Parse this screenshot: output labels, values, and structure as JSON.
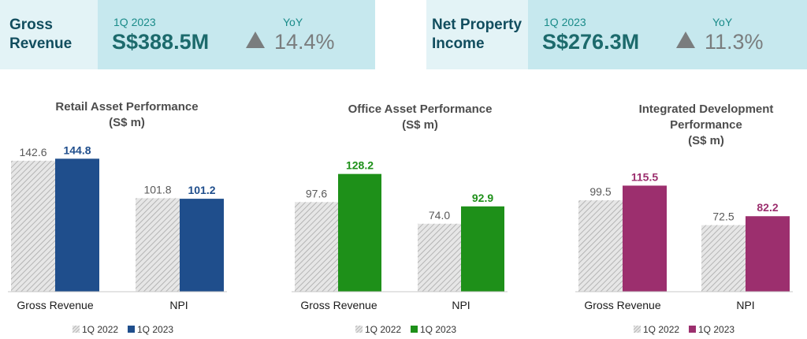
{
  "kpis": [
    {
      "name_line1": "Gross",
      "name_line2": "Revenue",
      "period": "1Q 2023",
      "amount": "S$388.5M",
      "yoy_label": "YoY",
      "yoy_value": "14.4%"
    },
    {
      "name_line1": "Net Property",
      "name_line2": "Income",
      "period": "1Q 2023",
      "amount": "S$276.3M",
      "yoy_label": "YoY",
      "yoy_value": "11.3%"
    }
  ],
  "colors": {
    "hatch": "#b3b3b3",
    "retail": "#1f4e8c",
    "office": "#1e9019",
    "integrated": "#9c2f6e",
    "kpi_bg": "#e3f3f6",
    "kpi_inner": "#c6e8ee",
    "triangle": "#7a7d7e"
  },
  "chart_data": [
    {
      "type": "bar",
      "title": [
        "Retail Asset Performance",
        "(S$ m)"
      ],
      "categories": [
        "Gross Revenue",
        "NPI"
      ],
      "series": [
        {
          "name": "1Q 2022",
          "values": [
            142.6,
            101.8
          ]
        },
        {
          "name": "1Q 2023",
          "values": [
            144.8,
            101.2
          ]
        }
      ]
    },
    {
      "type": "bar",
      "title": [
        "Office Asset Performance",
        "(S$ m)"
      ],
      "categories": [
        "Gross Revenue",
        "NPI"
      ],
      "series": [
        {
          "name": "1Q 2022",
          "values": [
            97.6,
            74.0
          ]
        },
        {
          "name": "1Q 2023",
          "values": [
            128.2,
            92.9
          ]
        }
      ]
    },
    {
      "type": "bar",
      "title": [
        "Integrated Development",
        "Performance",
        "(S$ m)"
      ],
      "categories": [
        "Gross Revenue",
        "NPI"
      ],
      "series": [
        {
          "name": "1Q 2022",
          "values": [
            99.5,
            72.5
          ]
        },
        {
          "name": "1Q 2023",
          "values": [
            115.5,
            82.2
          ]
        }
      ]
    }
  ]
}
